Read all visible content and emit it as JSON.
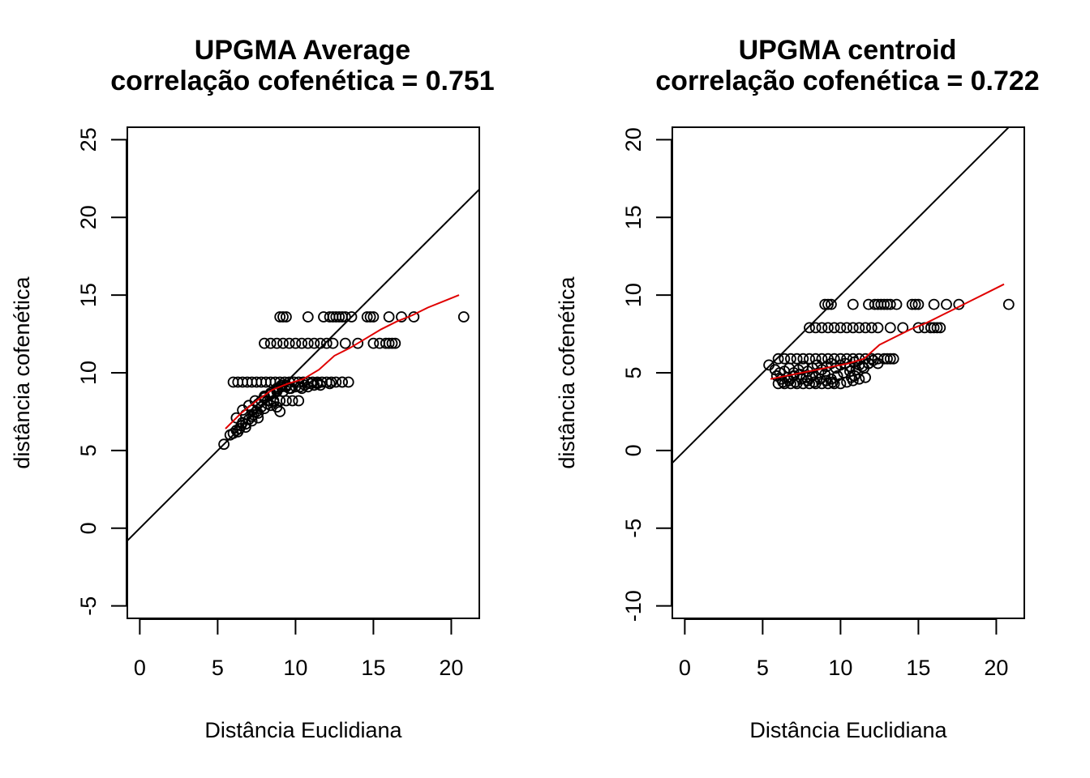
{
  "chart_data": [
    {
      "type": "scatter",
      "title_line1": "UPGMA Average",
      "title_line2": "correlação cofenética = 0.751",
      "xlabel": "Distância Euclidiana",
      "ylabel": "distância cofenética",
      "xlim": [
        -0.8,
        21.8
      ],
      "ylim": [
        -5.8,
        25.8
      ],
      "xticks": [
        0,
        5,
        10,
        15,
        20
      ],
      "yticks": [
        -5,
        0,
        5,
        10,
        15,
        20,
        25
      ],
      "grid": false,
      "point_color": "#000000",
      "reference_line": {
        "intercept": 0,
        "slope": 1,
        "color": "#000000"
      },
      "smooth_line": {
        "color": "#e00000",
        "x": [
          5.5,
          6.5,
          7.5,
          8.5,
          9.5,
          10.5,
          11.5,
          12.5,
          13.5,
          14.5,
          15.5,
          16.5,
          17.5,
          18.5,
          19.5,
          20.5
        ],
        "y": [
          6.4,
          7.4,
          8.2,
          8.9,
          9.3,
          9.6,
          10.2,
          11.1,
          11.6,
          12.2,
          12.8,
          13.3,
          13.7,
          14.2,
          14.6,
          15.0
        ]
      },
      "points": {
        "x": [
          5.4,
          5.8,
          6.0,
          6.2,
          6.3,
          6.5,
          6.6,
          6.8,
          7.0,
          7.2,
          7.3,
          7.5,
          7.6,
          7.8,
          8.0,
          8.2,
          8.4,
          8.6,
          8.8,
          9.0,
          6.0,
          6.3,
          6.6,
          6.9,
          7.2,
          7.5,
          7.8,
          8.1,
          8.4,
          8.7,
          9.0,
          9.3,
          9.6,
          9.9,
          10.2,
          10.5,
          10.8,
          11.1,
          11.4,
          11.7,
          12.0,
          12.3,
          12.6,
          13.0,
          13.4,
          6.2,
          6.6,
          7.0,
          7.4,
          7.8,
          8.2,
          8.6,
          9.0,
          9.4,
          9.8,
          10.2,
          6.8,
          7.2,
          7.6,
          8.0,
          8.4,
          8.8,
          9.2,
          9.6,
          6.4,
          6.8,
          7.2,
          7.6,
          8.0,
          8.4,
          8.8,
          9.1,
          9.4,
          8.0,
          8.4,
          8.8,
          9.2,
          9.6,
          10.0,
          10.4,
          10.8,
          11.2,
          11.6,
          12.0,
          12.4,
          13.2,
          14.0,
          15.0,
          15.4,
          15.8,
          16.0,
          16.2,
          16.4,
          9.0,
          9.2,
          9.4,
          10.8,
          11.8,
          12.2,
          12.4,
          12.6,
          12.8,
          13.0,
          13.2,
          13.6,
          14.6,
          14.8,
          15.0,
          16.0,
          16.8,
          17.6,
          20.8,
          9.6,
          10.0,
          10.4,
          10.8,
          11.2,
          11.6,
          8.8,
          9.1,
          9.4,
          9.7,
          10.3,
          10.6,
          11.0,
          11.4,
          12.2,
          13.0
        ],
        "y": [
          5.4,
          6.0,
          6.1,
          6.3,
          6.2,
          6.6,
          6.8,
          6.5,
          7.0,
          7.2,
          7.3,
          7.5,
          7.4,
          7.8,
          7.7,
          8.0,
          7.9,
          8.1,
          7.8,
          7.5,
          9.4,
          9.4,
          9.4,
          9.4,
          9.4,
          9.4,
          9.4,
          9.4,
          9.4,
          9.4,
          9.4,
          9.4,
          9.4,
          9.4,
          9.4,
          9.4,
          9.4,
          9.4,
          9.4,
          9.4,
          9.4,
          9.4,
          9.4,
          9.4,
          9.4,
          7.1,
          7.6,
          7.9,
          8.2,
          8.2,
          8.2,
          8.2,
          8.2,
          8.2,
          8.2,
          8.2,
          7.3,
          7.6,
          8.0,
          8.5,
          8.7,
          8.9,
          8.8,
          9.0,
          6.4,
          6.7,
          6.9,
          7.1,
          8.4,
          8.6,
          8.8,
          9.1,
          9.2,
          11.9,
          11.9,
          11.9,
          11.9,
          11.9,
          11.9,
          11.9,
          11.9,
          11.9,
          11.9,
          11.9,
          11.9,
          11.9,
          11.9,
          11.9,
          11.9,
          11.9,
          11.9,
          11.9,
          11.9,
          13.6,
          13.6,
          13.6,
          13.6,
          13.6,
          13.6,
          13.6,
          13.6,
          13.6,
          13.6,
          13.6,
          13.6,
          13.6,
          13.6,
          13.6,
          13.6,
          13.6,
          13.6,
          13.6,
          9.0,
          9.1,
          9.0,
          9.1,
          9.2,
          9.2,
          9.0,
          9.2,
          9.1,
          9.0,
          9.1,
          9.2,
          9.3,
          9.3,
          9.3,
          9.4
        ]
      }
    },
    {
      "type": "scatter",
      "title_line1": "UPGMA centroid",
      "title_line2": "correlação cofenética = 0.722",
      "xlabel": "Distância Euclidiana",
      "ylabel": "distância cofenética",
      "xlim": [
        -0.8,
        21.8
      ],
      "ylim": [
        -10.8,
        20.8
      ],
      "xticks": [
        0,
        5,
        10,
        15,
        20
      ],
      "yticks": [
        -10,
        -5,
        0,
        5,
        10,
        15,
        20
      ],
      "grid": false,
      "point_color": "#000000",
      "reference_line": {
        "intercept": 0,
        "slope": 1,
        "color": "#000000"
      },
      "smooth_line": {
        "color": "#e00000",
        "x": [
          5.5,
          6.5,
          7.5,
          8.5,
          9.5,
          10.5,
          11.5,
          12.5,
          13.5,
          14.5,
          15.5,
          16.5,
          17.5,
          18.5,
          19.5,
          20.5
        ],
        "y": [
          4.6,
          4.8,
          5.0,
          5.2,
          5.4,
          5.6,
          5.9,
          6.8,
          7.3,
          7.8,
          8.2,
          8.7,
          9.2,
          9.7,
          10.2,
          10.7
        ]
      },
      "points": {
        "x": [
          5.4,
          5.8,
          6.1,
          6.4,
          6.7,
          7.0,
          7.3,
          7.6,
          7.9,
          8.2,
          8.5,
          8.8,
          9.1,
          9.4,
          9.7,
          10.0,
          10.3,
          10.6,
          10.9,
          11.2,
          11.5,
          11.8,
          12.1,
          12.4,
          12.8,
          13.2,
          6.0,
          6.4,
          6.8,
          7.2,
          7.6,
          8.0,
          8.4,
          8.8,
          9.2,
          9.6,
          10.0,
          10.4,
          10.8,
          11.2,
          11.6,
          12.0,
          12.4,
          13.0,
          13.4,
          6.0,
          6.4,
          6.8,
          7.2,
          7.6,
          8.0,
          8.4,
          8.8,
          9.2,
          9.6,
          10.0,
          10.4,
          10.8,
          11.2,
          11.6,
          6.2,
          6.6,
          7.0,
          7.4,
          7.8,
          8.2,
          8.6,
          9.0,
          9.4,
          9.8,
          10.2,
          10.6,
          11.0,
          11.4,
          11.8,
          5.9,
          6.3,
          6.7,
          7.1,
          7.5,
          7.9,
          8.3,
          8.7,
          9.1,
          9.5,
          10.7,
          10.9,
          8.0,
          8.4,
          8.8,
          9.2,
          9.6,
          10.0,
          10.4,
          10.8,
          11.2,
          11.6,
          12.0,
          12.4,
          13.2,
          14.0,
          15.0,
          15.4,
          15.8,
          16.0,
          16.2,
          16.4,
          9.0,
          9.2,
          9.4,
          10.8,
          11.8,
          12.2,
          12.4,
          12.6,
          12.8,
          13.0,
          13.2,
          13.6,
          14.6,
          14.8,
          15.0,
          16.0,
          16.8,
          17.6,
          20.8
        ],
        "y": [
          5.5,
          5.2,
          5.0,
          5.1,
          5.3,
          5.0,
          5.2,
          5.4,
          5.1,
          5.3,
          5.5,
          5.2,
          5.4,
          5.6,
          5.3,
          5.5,
          5.6,
          5.4,
          5.7,
          5.5,
          5.3,
          5.6,
          5.8,
          5.6,
          5.9,
          5.9,
          5.9,
          5.9,
          5.9,
          5.9,
          5.9,
          5.9,
          5.9,
          5.9,
          5.9,
          5.9,
          5.9,
          5.9,
          5.9,
          5.9,
          5.9,
          5.9,
          5.9,
          5.9,
          5.9,
          4.3,
          4.3,
          4.3,
          4.3,
          4.3,
          4.3,
          4.3,
          4.3,
          4.3,
          4.3,
          4.3,
          4.4,
          4.5,
          4.6,
          4.7,
          4.6,
          4.7,
          4.8,
          4.9,
          4.7,
          4.8,
          5.0,
          4.9,
          4.6,
          4.8,
          5.0,
          5.1,
          5.2,
          5.4,
          5.6,
          4.8,
          4.4,
          4.5,
          4.4,
          4.6,
          4.5,
          4.4,
          4.6,
          4.5,
          4.4,
          4.7,
          4.8,
          7.9,
          7.9,
          7.9,
          7.9,
          7.9,
          7.9,
          7.9,
          7.9,
          7.9,
          7.9,
          7.9,
          7.9,
          7.9,
          7.9,
          7.9,
          7.9,
          7.9,
          7.9,
          7.9,
          7.9,
          9.4,
          9.4,
          9.4,
          9.4,
          9.4,
          9.4,
          9.4,
          9.4,
          9.4,
          9.4,
          9.4,
          9.4,
          9.4,
          9.4,
          9.4,
          9.4,
          9.4,
          9.4,
          9.4
        ]
      }
    }
  ]
}
